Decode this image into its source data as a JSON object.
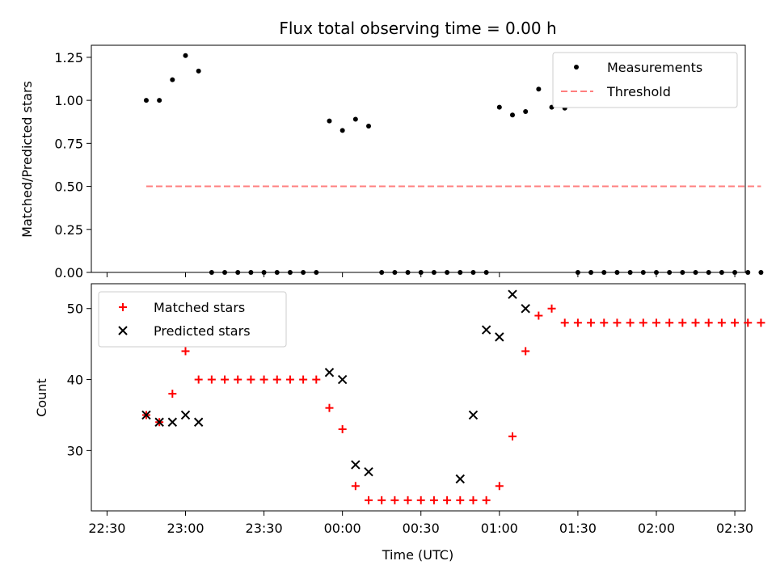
{
  "chart_data": [
    {
      "type": "scatter",
      "title": "Flux total observing time = 0.00 h",
      "ylabel": "Matched/Predicted stars",
      "xlabel": "",
      "xlim": [
        "22:24",
        "02:34"
      ],
      "ylim": [
        0,
        1.32
      ],
      "yticks": [
        0.0,
        0.25,
        0.5,
        0.75,
        1.0,
        1.25
      ],
      "ytick_labels": [
        "0.00",
        "0.25",
        "0.50",
        "0.75",
        "1.00",
        "1.25"
      ],
      "grid": false,
      "legend_position": "top-right",
      "series": [
        {
          "name": "Measurements",
          "marker": "dot",
          "color": "#000000",
          "x": [
            "22:45",
            "22:50",
            "22:55",
            "23:00",
            "23:05",
            "23:10",
            "23:15",
            "23:20",
            "23:25",
            "23:30",
            "23:35",
            "23:40",
            "23:45",
            "23:50",
            "23:55",
            "00:00",
            "00:05",
            "00:10",
            "00:15",
            "00:20",
            "00:25",
            "00:30",
            "00:35",
            "00:40",
            "00:45",
            "00:50",
            "00:55",
            "01:00",
            "01:05",
            "01:10",
            "01:15",
            "01:20",
            "01:25",
            "01:30",
            "01:35",
            "01:40",
            "01:45",
            "01:50",
            "01:55",
            "02:00",
            "02:05",
            "02:10",
            "02:15",
            "02:20",
            "02:25",
            "02:30",
            "02:35",
            "02:40"
          ],
          "y": [
            1.0,
            1.0,
            1.12,
            1.26,
            1.17,
            0,
            0,
            0,
            0,
            0,
            0,
            0,
            0,
            0,
            0.88,
            0.825,
            0.89,
            0.85,
            0,
            0,
            0,
            0,
            0,
            0,
            0,
            0,
            0,
            0.96,
            0.915,
            0.935,
            1.065,
            0.96,
            0.955,
            0,
            0,
            0,
            0,
            0,
            0,
            0,
            0,
            0,
            0,
            0,
            0,
            0,
            0,
            0
          ]
        },
        {
          "name": "Threshold",
          "marker": "dashed-line",
          "color": "#ff7f7f",
          "x": [
            "22:45",
            "02:40"
          ],
          "y": [
            0.5,
            0.5
          ]
        }
      ]
    },
    {
      "type": "scatter",
      "title": "",
      "ylabel": "Count",
      "xlabel": "Time (UTC)",
      "xlim": [
        "22:24",
        "02:34"
      ],
      "ylim": [
        21.5,
        53.5
      ],
      "yticks": [
        30,
        40,
        50
      ],
      "ytick_labels": [
        "30",
        "40",
        "50"
      ],
      "xticks": [
        "22:30",
        "23:00",
        "23:30",
        "00:00",
        "00:30",
        "01:00",
        "01:30",
        "02:00",
        "02:30"
      ],
      "grid": false,
      "legend_position": "top-left",
      "series": [
        {
          "name": "Matched stars",
          "marker": "plus",
          "color": "#ff0000",
          "x": [
            "22:45",
            "22:50",
            "22:55",
            "23:00",
            "23:05",
            "23:10",
            "23:15",
            "23:20",
            "23:25",
            "23:30",
            "23:35",
            "23:40",
            "23:45",
            "23:50",
            "23:55",
            "00:00",
            "00:05",
            "00:10",
            "00:15",
            "00:20",
            "00:25",
            "00:30",
            "00:35",
            "00:40",
            "00:45",
            "00:50",
            "00:55",
            "01:00",
            "01:05",
            "01:10",
            "01:15",
            "01:20",
            "01:25",
            "01:30",
            "01:35",
            "01:40",
            "01:45",
            "01:50",
            "01:55",
            "02:00",
            "02:05",
            "02:10",
            "02:15",
            "02:20",
            "02:25",
            "02:30",
            "02:35",
            "02:40"
          ],
          "y": [
            35,
            34,
            38,
            44,
            40,
            40,
            40,
            40,
            40,
            40,
            40,
            40,
            40,
            40,
            36,
            33,
            25,
            23,
            23,
            23,
            23,
            23,
            23,
            23,
            23,
            23,
            23,
            25,
            32,
            44,
            49,
            50,
            48,
            48,
            48,
            48,
            48,
            48,
            48,
            48,
            48,
            48,
            48,
            48,
            48,
            48,
            48,
            48
          ]
        },
        {
          "name": "Predicted stars",
          "marker": "x",
          "color": "#000000",
          "x": [
            "22:45",
            "22:50",
            "22:55",
            "23:00",
            "23:05",
            "23:55",
            "00:00",
            "00:05",
            "00:10",
            "00:45",
            "00:50",
            "00:55",
            "01:00",
            "01:05",
            "01:10"
          ],
          "y": [
            35,
            34,
            34,
            35,
            34,
            41,
            40,
            28,
            27,
            26,
            35,
            47,
            46,
            52,
            50
          ]
        }
      ]
    }
  ]
}
